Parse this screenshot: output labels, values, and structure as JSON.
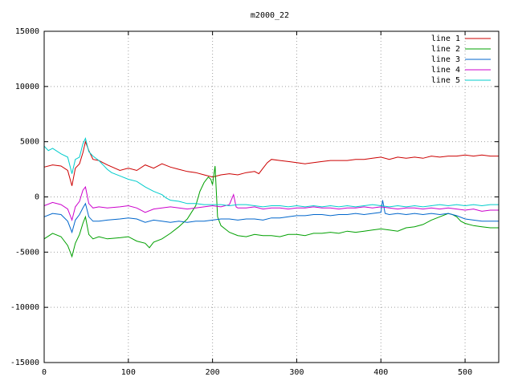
{
  "chart_data": {
    "type": "line",
    "title": "m2000_22",
    "xlabel": "",
    "ylabel": "",
    "xlim": [
      0,
      540
    ],
    "ylim": [
      -15000,
      15000
    ],
    "x_ticks": [
      0,
      100,
      200,
      300,
      400,
      500
    ],
    "y_ticks": [
      -15000,
      -10000,
      -5000,
      0,
      5000,
      10000,
      15000
    ],
    "grid": true,
    "legend_position": "top-right",
    "series": [
      {
        "name": "line 1",
        "color": "#cc0000",
        "points": [
          [
            0,
            2700
          ],
          [
            10,
            2900
          ],
          [
            20,
            2800
          ],
          [
            28,
            2400
          ],
          [
            33,
            1000
          ],
          [
            37,
            2600
          ],
          [
            42,
            3000
          ],
          [
            46,
            4000
          ],
          [
            49,
            5000
          ],
          [
            53,
            4200
          ],
          [
            58,
            3400
          ],
          [
            65,
            3300
          ],
          [
            75,
            2900
          ],
          [
            90,
            2400
          ],
          [
            100,
            2600
          ],
          [
            110,
            2400
          ],
          [
            120,
            2900
          ],
          [
            130,
            2600
          ],
          [
            140,
            3000
          ],
          [
            150,
            2700
          ],
          [
            160,
            2500
          ],
          [
            170,
            2300
          ],
          [
            180,
            2200
          ],
          [
            190,
            2000
          ],
          [
            200,
            1800
          ],
          [
            210,
            2000
          ],
          [
            220,
            2100
          ],
          [
            230,
            2000
          ],
          [
            240,
            2200
          ],
          [
            250,
            2300
          ],
          [
            255,
            2100
          ],
          [
            260,
            2600
          ],
          [
            265,
            3100
          ],
          [
            270,
            3400
          ],
          [
            280,
            3300
          ],
          [
            290,
            3200
          ],
          [
            300,
            3100
          ],
          [
            310,
            3000
          ],
          [
            320,
            3100
          ],
          [
            330,
            3200
          ],
          [
            340,
            3300
          ],
          [
            350,
            3300
          ],
          [
            360,
            3300
          ],
          [
            370,
            3400
          ],
          [
            380,
            3400
          ],
          [
            390,
            3500
          ],
          [
            400,
            3600
          ],
          [
            410,
            3400
          ],
          [
            420,
            3600
          ],
          [
            430,
            3500
          ],
          [
            440,
            3600
          ],
          [
            450,
            3500
          ],
          [
            460,
            3700
          ],
          [
            470,
            3600
          ],
          [
            480,
            3700
          ],
          [
            490,
            3700
          ],
          [
            500,
            3800
          ],
          [
            510,
            3700
          ],
          [
            520,
            3800
          ],
          [
            530,
            3700
          ],
          [
            540,
            3700
          ]
        ]
      },
      {
        "name": "line 2",
        "color": "#00a000",
        "points": [
          [
            0,
            -3800
          ],
          [
            10,
            -3300
          ],
          [
            20,
            -3600
          ],
          [
            28,
            -4400
          ],
          [
            33,
            -5400
          ],
          [
            37,
            -4200
          ],
          [
            42,
            -3400
          ],
          [
            46,
            -2400
          ],
          [
            49,
            -1800
          ],
          [
            53,
            -3400
          ],
          [
            58,
            -3800
          ],
          [
            65,
            -3600
          ],
          [
            75,
            -3800
          ],
          [
            90,
            -3700
          ],
          [
            100,
            -3600
          ],
          [
            110,
            -4000
          ],
          [
            120,
            -4200
          ],
          [
            125,
            -4600
          ],
          [
            130,
            -4100
          ],
          [
            140,
            -3800
          ],
          [
            150,
            -3300
          ],
          [
            160,
            -2700
          ],
          [
            170,
            -2000
          ],
          [
            175,
            -1400
          ],
          [
            180,
            -800
          ],
          [
            185,
            500
          ],
          [
            190,
            1300
          ],
          [
            195,
            1800
          ],
          [
            198,
            1600
          ],
          [
            200,
            1100
          ],
          [
            203,
            2800
          ],
          [
            206,
            -1800
          ],
          [
            210,
            -2600
          ],
          [
            220,
            -3200
          ],
          [
            230,
            -3500
          ],
          [
            240,
            -3600
          ],
          [
            250,
            -3400
          ],
          [
            260,
            -3500
          ],
          [
            270,
            -3500
          ],
          [
            280,
            -3600
          ],
          [
            290,
            -3400
          ],
          [
            300,
            -3400
          ],
          [
            310,
            -3500
          ],
          [
            320,
            -3300
          ],
          [
            330,
            -3300
          ],
          [
            340,
            -3200
          ],
          [
            350,
            -3300
          ],
          [
            360,
            -3100
          ],
          [
            370,
            -3200
          ],
          [
            380,
            -3100
          ],
          [
            390,
            -3000
          ],
          [
            400,
            -2900
          ],
          [
            410,
            -3000
          ],
          [
            420,
            -3100
          ],
          [
            430,
            -2800
          ],
          [
            440,
            -2700
          ],
          [
            450,
            -2500
          ],
          [
            460,
            -2100
          ],
          [
            470,
            -1800
          ],
          [
            480,
            -1500
          ],
          [
            485,
            -1600
          ],
          [
            490,
            -1800
          ],
          [
            495,
            -2200
          ],
          [
            500,
            -2400
          ],
          [
            510,
            -2600
          ],
          [
            520,
            -2700
          ],
          [
            530,
            -2800
          ],
          [
            540,
            -2800
          ]
        ]
      },
      {
        "name": "line 3",
        "color": "#0066cc",
        "points": [
          [
            0,
            -1800
          ],
          [
            10,
            -1500
          ],
          [
            20,
            -1600
          ],
          [
            28,
            -2200
          ],
          [
            33,
            -3200
          ],
          [
            37,
            -2100
          ],
          [
            42,
            -1600
          ],
          [
            46,
            -1000
          ],
          [
            49,
            -600
          ],
          [
            53,
            -1800
          ],
          [
            58,
            -2200
          ],
          [
            65,
            -2200
          ],
          [
            75,
            -2100
          ],
          [
            90,
            -2000
          ],
          [
            100,
            -1900
          ],
          [
            110,
            -2000
          ],
          [
            120,
            -2300
          ],
          [
            130,
            -2100
          ],
          [
            140,
            -2200
          ],
          [
            150,
            -2300
          ],
          [
            160,
            -2200
          ],
          [
            170,
            -2300
          ],
          [
            180,
            -2200
          ],
          [
            190,
            -2200
          ],
          [
            200,
            -2100
          ],
          [
            210,
            -2000
          ],
          [
            220,
            -2000
          ],
          [
            230,
            -2100
          ],
          [
            240,
            -2000
          ],
          [
            250,
            -2000
          ],
          [
            260,
            -2100
          ],
          [
            270,
            -1900
          ],
          [
            280,
            -1900
          ],
          [
            290,
            -1800
          ],
          [
            300,
            -1700
          ],
          [
            310,
            -1700
          ],
          [
            320,
            -1600
          ],
          [
            330,
            -1600
          ],
          [
            340,
            -1700
          ],
          [
            350,
            -1600
          ],
          [
            360,
            -1600
          ],
          [
            370,
            -1500
          ],
          [
            380,
            -1600
          ],
          [
            390,
            -1500
          ],
          [
            400,
            -1400
          ],
          [
            402,
            -300
          ],
          [
            405,
            -1500
          ],
          [
            410,
            -1600
          ],
          [
            420,
            -1500
          ],
          [
            430,
            -1600
          ],
          [
            440,
            -1500
          ],
          [
            450,
            -1600
          ],
          [
            460,
            -1500
          ],
          [
            470,
            -1600
          ],
          [
            480,
            -1500
          ],
          [
            490,
            -1700
          ],
          [
            500,
            -2000
          ],
          [
            510,
            -2100
          ],
          [
            520,
            -2200
          ],
          [
            530,
            -2200
          ],
          [
            540,
            -2200
          ]
        ]
      },
      {
        "name": "line 4",
        "color": "#cc00cc",
        "points": [
          [
            0,
            -800
          ],
          [
            10,
            -500
          ],
          [
            20,
            -700
          ],
          [
            28,
            -1100
          ],
          [
            33,
            -2100
          ],
          [
            37,
            -900
          ],
          [
            42,
            -400
          ],
          [
            46,
            600
          ],
          [
            49,
            900
          ],
          [
            53,
            -600
          ],
          [
            58,
            -1000
          ],
          [
            65,
            -900
          ],
          [
            75,
            -1000
          ],
          [
            90,
            -900
          ],
          [
            100,
            -800
          ],
          [
            110,
            -1000
          ],
          [
            120,
            -1400
          ],
          [
            130,
            -1100
          ],
          [
            140,
            -1000
          ],
          [
            150,
            -900
          ],
          [
            160,
            -1000
          ],
          [
            170,
            -1100
          ],
          [
            180,
            -1000
          ],
          [
            190,
            -900
          ],
          [
            200,
            -800
          ],
          [
            210,
            -900
          ],
          [
            220,
            -700
          ],
          [
            225,
            200
          ],
          [
            228,
            -900
          ],
          [
            230,
            -1000
          ],
          [
            240,
            -1000
          ],
          [
            250,
            -900
          ],
          [
            260,
            -1100
          ],
          [
            270,
            -1000
          ],
          [
            280,
            -1000
          ],
          [
            290,
            -1100
          ],
          [
            300,
            -1000
          ],
          [
            310,
            -1000
          ],
          [
            320,
            -900
          ],
          [
            330,
            -1000
          ],
          [
            340,
            -1000
          ],
          [
            350,
            -1100
          ],
          [
            360,
            -1000
          ],
          [
            370,
            -1000
          ],
          [
            380,
            -900
          ],
          [
            390,
            -1000
          ],
          [
            400,
            -900
          ],
          [
            410,
            -1000
          ],
          [
            420,
            -1100
          ],
          [
            430,
            -1000
          ],
          [
            440,
            -1000
          ],
          [
            450,
            -1100
          ],
          [
            460,
            -1000
          ],
          [
            470,
            -1100
          ],
          [
            480,
            -1000
          ],
          [
            490,
            -1100
          ],
          [
            500,
            -1200
          ],
          [
            510,
            -1100
          ],
          [
            520,
            -1300
          ],
          [
            530,
            -1200
          ],
          [
            540,
            -1200
          ]
        ]
      },
      {
        "name": "line 5",
        "color": "#00cccc",
        "points": [
          [
            0,
            4600
          ],
          [
            5,
            4200
          ],
          [
            10,
            4400
          ],
          [
            20,
            3900
          ],
          [
            28,
            3600
          ],
          [
            33,
            2100
          ],
          [
            37,
            3400
          ],
          [
            42,
            3600
          ],
          [
            46,
            4800
          ],
          [
            49,
            5300
          ],
          [
            53,
            4100
          ],
          [
            58,
            3700
          ],
          [
            65,
            3300
          ],
          [
            75,
            2500
          ],
          [
            80,
            2200
          ],
          [
            90,
            1900
          ],
          [
            100,
            1600
          ],
          [
            110,
            1400
          ],
          [
            120,
            900
          ],
          [
            130,
            500
          ],
          [
            140,
            200
          ],
          [
            145,
            -100
          ],
          [
            150,
            -300
          ],
          [
            160,
            -400
          ],
          [
            170,
            -600
          ],
          [
            180,
            -600
          ],
          [
            190,
            -700
          ],
          [
            200,
            -700
          ],
          [
            210,
            -700
          ],
          [
            220,
            -800
          ],
          [
            230,
            -700
          ],
          [
            240,
            -700
          ],
          [
            250,
            -800
          ],
          [
            260,
            -900
          ],
          [
            270,
            -800
          ],
          [
            280,
            -800
          ],
          [
            290,
            -900
          ],
          [
            300,
            -800
          ],
          [
            310,
            -900
          ],
          [
            320,
            -800
          ],
          [
            330,
            -900
          ],
          [
            340,
            -800
          ],
          [
            350,
            -900
          ],
          [
            360,
            -800
          ],
          [
            370,
            -900
          ],
          [
            380,
            -800
          ],
          [
            390,
            -700
          ],
          [
            400,
            -800
          ],
          [
            410,
            -900
          ],
          [
            420,
            -800
          ],
          [
            430,
            -900
          ],
          [
            440,
            -800
          ],
          [
            450,
            -900
          ],
          [
            460,
            -800
          ],
          [
            470,
            -700
          ],
          [
            480,
            -800
          ],
          [
            490,
            -700
          ],
          [
            500,
            -800
          ],
          [
            510,
            -700
          ],
          [
            520,
            -800
          ],
          [
            530,
            -700
          ],
          [
            540,
            -700
          ]
        ]
      }
    ]
  }
}
